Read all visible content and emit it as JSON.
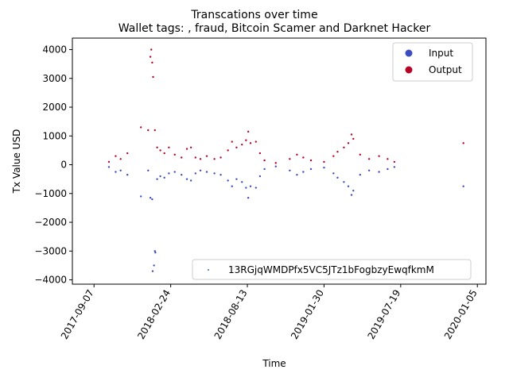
{
  "chart_data": {
    "type": "scatter",
    "title": "Transcations over time",
    "subtitle": "Wallet tags: , fraud, Bitcoin Scamer and Darknet Hacker",
    "xlabel": "Time",
    "ylabel": "Tx Value USD",
    "xlim": [
      "2017-07-21",
      "2020-01-24"
    ],
    "ylim": [
      -4150,
      4400
    ],
    "x_ticks": [
      "2017-09-07",
      "2018-02-24",
      "2018-08-13",
      "2019-01-30",
      "2019-07-19",
      "2020-01-05"
    ],
    "y_ticks": [
      -4000,
      -3000,
      -2000,
      -1000,
      0,
      1000,
      2000,
      3000,
      4000
    ],
    "y_tick_labels": [
      "−4000",
      "−3000",
      "−2000",
      "−1000",
      "0",
      "1000",
      "2000",
      "3000",
      "4000"
    ],
    "grid": false,
    "legend": {
      "placement": "top-right",
      "entries": [
        {
          "label": "Input",
          "color": "#3b4cc0"
        },
        {
          "label": "Output",
          "color": "#b40426"
        }
      ]
    },
    "address_legend": {
      "placement": "lower-right",
      "label": "13RGjqWMDPfx5VC5JTz1bFogbzyEwqfkmM",
      "color": "#1f77b4"
    },
    "series": [
      {
        "name": "Input",
        "color": "#3b4cc0",
        "points": [
          [
            "2017-10-10",
            -80
          ],
          [
            "2017-10-25",
            -250
          ],
          [
            "2017-11-05",
            -200
          ],
          [
            "2017-11-20",
            -350
          ],
          [
            "2017-12-20",
            -1100
          ],
          [
            "2018-01-05",
            -200
          ],
          [
            "2018-01-10",
            -1150
          ],
          [
            "2018-01-14",
            -1200
          ],
          [
            "2018-01-15",
            -3700
          ],
          [
            "2018-01-18",
            -3500
          ],
          [
            "2018-01-20",
            -3000
          ],
          [
            "2018-01-21",
            -3050
          ],
          [
            "2018-01-25",
            -500
          ],
          [
            "2018-02-01",
            -400
          ],
          [
            "2018-02-10",
            -450
          ],
          [
            "2018-02-20",
            -300
          ],
          [
            "2018-03-05",
            -250
          ],
          [
            "2018-03-20",
            -350
          ],
          [
            "2018-04-01",
            -500
          ],
          [
            "2018-04-10",
            -550
          ],
          [
            "2018-04-20",
            -300
          ],
          [
            "2018-05-01",
            -200
          ],
          [
            "2018-05-15",
            -250
          ],
          [
            "2018-06-01",
            -300
          ],
          [
            "2018-06-15",
            -350
          ],
          [
            "2018-07-01",
            -550
          ],
          [
            "2018-07-10",
            -750
          ],
          [
            "2018-07-20",
            -500
          ],
          [
            "2018-08-01",
            -600
          ],
          [
            "2018-08-10",
            -800
          ],
          [
            "2018-08-15",
            -1150
          ],
          [
            "2018-08-20",
            -750
          ],
          [
            "2018-09-01",
            -800
          ],
          [
            "2018-09-10",
            -400
          ],
          [
            "2018-09-20",
            -150
          ],
          [
            "2018-10-15",
            -60
          ],
          [
            "2018-11-15",
            -200
          ],
          [
            "2018-12-01",
            -350
          ],
          [
            "2018-12-15",
            -250
          ],
          [
            "2019-01-01",
            -150
          ],
          [
            "2019-01-30",
            -100
          ],
          [
            "2019-02-20",
            -300
          ],
          [
            "2019-03-01",
            -450
          ],
          [
            "2019-03-15",
            -600
          ],
          [
            "2019-03-25",
            -750
          ],
          [
            "2019-04-01",
            -1050
          ],
          [
            "2019-04-05",
            -900
          ],
          [
            "2019-04-20",
            -350
          ],
          [
            "2019-05-10",
            -200
          ],
          [
            "2019-06-01",
            -250
          ],
          [
            "2019-06-20",
            -150
          ],
          [
            "2019-07-05",
            -80
          ],
          [
            "2019-12-05",
            -750
          ]
        ]
      },
      {
        "name": "Output",
        "color": "#b40426",
        "points": [
          [
            "2017-10-10",
            100
          ],
          [
            "2017-10-25",
            300
          ],
          [
            "2017-11-05",
            200
          ],
          [
            "2017-11-20",
            400
          ],
          [
            "2017-12-20",
            1300
          ],
          [
            "2018-01-05",
            1200
          ],
          [
            "2018-01-10",
            3750
          ],
          [
            "2018-01-12",
            4000
          ],
          [
            "2018-01-14",
            3550
          ],
          [
            "2018-01-16",
            3050
          ],
          [
            "2018-01-20",
            1200
          ],
          [
            "2018-01-25",
            600
          ],
          [
            "2018-02-01",
            500
          ],
          [
            "2018-02-10",
            400
          ],
          [
            "2018-02-20",
            600
          ],
          [
            "2018-03-05",
            350
          ],
          [
            "2018-03-20",
            250
          ],
          [
            "2018-04-01",
            550
          ],
          [
            "2018-04-10",
            600
          ],
          [
            "2018-04-20",
            250
          ],
          [
            "2018-05-01",
            200
          ],
          [
            "2018-05-15",
            300
          ],
          [
            "2018-06-01",
            200
          ],
          [
            "2018-06-15",
            250
          ],
          [
            "2018-07-01",
            500
          ],
          [
            "2018-07-10",
            800
          ],
          [
            "2018-07-20",
            600
          ],
          [
            "2018-08-01",
            700
          ],
          [
            "2018-08-10",
            850
          ],
          [
            "2018-08-15",
            1150
          ],
          [
            "2018-08-20",
            750
          ],
          [
            "2018-09-01",
            800
          ],
          [
            "2018-09-10",
            400
          ],
          [
            "2018-09-20",
            150
          ],
          [
            "2018-10-15",
            60
          ],
          [
            "2018-11-15",
            200
          ],
          [
            "2018-12-01",
            350
          ],
          [
            "2018-12-15",
            250
          ],
          [
            "2019-01-01",
            150
          ],
          [
            "2019-01-30",
            100
          ],
          [
            "2019-02-20",
            300
          ],
          [
            "2019-03-01",
            450
          ],
          [
            "2019-03-15",
            600
          ],
          [
            "2019-03-25",
            750
          ],
          [
            "2019-04-01",
            1050
          ],
          [
            "2019-04-05",
            900
          ],
          [
            "2019-04-20",
            350
          ],
          [
            "2019-05-10",
            200
          ],
          [
            "2019-06-01",
            300
          ],
          [
            "2019-06-20",
            200
          ],
          [
            "2019-07-05",
            100
          ],
          [
            "2019-12-05",
            750
          ]
        ]
      }
    ]
  }
}
